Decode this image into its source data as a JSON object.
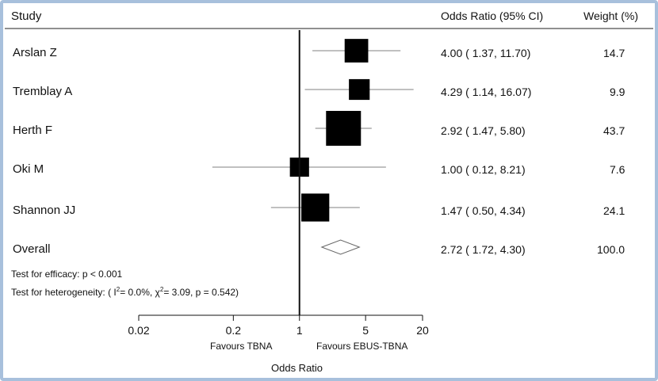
{
  "header": {
    "study": "Study",
    "odds_ratio": "Odds Ratio (95% CI)",
    "weight": "Weight (%)"
  },
  "notes": {
    "efficacy": "Test for efficacy: p < 0.001",
    "heterogeneity_prefix": "Test for heterogeneity: ( I",
    "heterogeneity_sup1": "2",
    "heterogeneity_mid": "= 0.0%, χ",
    "heterogeneity_sup2": "2",
    "heterogeneity_suffix": "= 3.09, p = 0.542)"
  },
  "axis": {
    "xlabel": "Odds Ratio",
    "favours_left": "Favours TBNA",
    "favours_right": "Favours EBUS-TBNA",
    "ticks": [
      {
        "value": 0.02,
        "label": "0.02"
      },
      {
        "value": 0.2,
        "label": "0.2"
      },
      {
        "value": 1,
        "label": "1"
      },
      {
        "value": 5,
        "label": "5"
      },
      {
        "value": 20,
        "label": "20"
      }
    ]
  },
  "chart_data": {
    "type": "forest",
    "scale": "log",
    "xlim": [
      0.02,
      20
    ],
    "reference_line": 1,
    "studies": [
      {
        "name": "Arslan Z",
        "or": 4.0,
        "lo": 1.37,
        "hi": 11.7,
        "ci_text": "4.00 ( 1.37, 11.70)",
        "weight": "14.7",
        "weight_value": 14.7
      },
      {
        "name": "Tremblay A",
        "or": 4.29,
        "lo": 1.14,
        "hi": 16.07,
        "ci_text": "4.29 ( 1.14, 16.07)",
        "weight": "9.9",
        "weight_value": 9.9
      },
      {
        "name": "Herth F",
        "or": 2.92,
        "lo": 1.47,
        "hi": 5.8,
        "ci_text": "2.92 ( 1.47, 5.80)",
        "weight": "43.7",
        "weight_value": 43.7
      },
      {
        "name": "Oki M",
        "or": 1.0,
        "lo": 0.12,
        "hi": 8.21,
        "ci_text": "1.00 ( 0.12, 8.21)",
        "weight": "7.6",
        "weight_value": 7.6
      },
      {
        "name": "Shannon JJ",
        "or": 1.47,
        "lo": 0.5,
        "hi": 4.34,
        "ci_text": "1.47 ( 0.50, 4.34)",
        "weight": "24.1",
        "weight_value": 24.1
      }
    ],
    "overall": {
      "name": "Overall",
      "or": 2.72,
      "lo": 1.72,
      "hi": 4.3,
      "ci_text": "2.72 ( 1.72, 4.30)",
      "weight": "100.0"
    }
  }
}
